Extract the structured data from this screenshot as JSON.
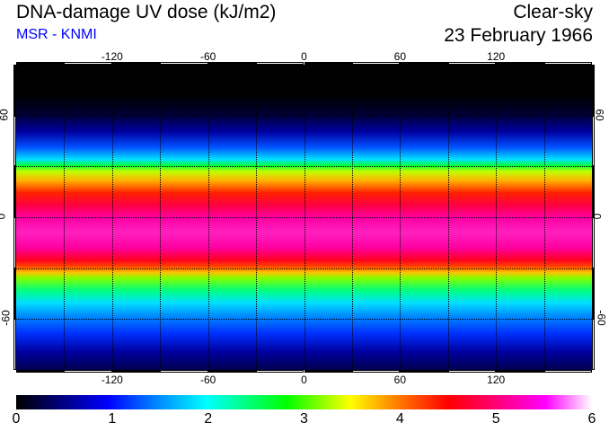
{
  "title": "DNA-damage UV dose (kJ/m2)",
  "subtitle": "MSR - KNMI",
  "condition": "Clear-sky",
  "date": "23 February 1966",
  "lon_labels": [
    "-120",
    "-60",
    "0",
    "60",
    "120"
  ],
  "lat_labels": [
    "60",
    "0",
    "-60"
  ],
  "colorbar": {
    "labels": [
      "0",
      "1",
      "2",
      "3",
      "4",
      "5",
      "6"
    ],
    "min": 0,
    "max": 6
  }
}
